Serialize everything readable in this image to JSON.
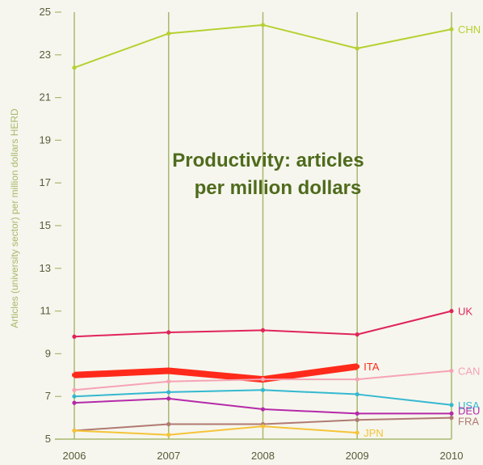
{
  "chart_data": {
    "type": "line",
    "title_lines": [
      "Productivity: articles",
      "per million dollars"
    ],
    "ylabel": "Articles (university sector) per million dollars HERD",
    "xlabel": "",
    "x": [
      2006,
      2007,
      2008,
      2009,
      2010
    ],
    "ylim": [
      5,
      25
    ],
    "yticks": [
      5,
      7,
      9,
      11,
      13,
      15,
      17,
      19,
      21,
      23,
      25
    ],
    "grid": "vertical",
    "legend": "direct labels at line ends",
    "series": [
      {
        "name": "CHN",
        "color": "#b5d132",
        "width": 2,
        "values": [
          22.4,
          24.0,
          24.4,
          23.3,
          24.2
        ]
      },
      {
        "name": "UK",
        "color": "#e0245a",
        "width": 2,
        "values": [
          9.8,
          10.0,
          10.1,
          9.9,
          11.0
        ]
      },
      {
        "name": "ITA",
        "color": "#ff2a1a",
        "width": 8,
        "values": [
          8.0,
          8.2,
          7.8,
          8.4,
          null
        ]
      },
      {
        "name": "CAN",
        "color": "#f6a3b4",
        "width": 2,
        "values": [
          7.3,
          7.7,
          7.8,
          7.8,
          8.2
        ]
      },
      {
        "name": "USA",
        "color": "#35b8d0",
        "width": 2,
        "values": [
          7.0,
          7.2,
          7.3,
          7.1,
          6.6
        ]
      },
      {
        "name": "DEU",
        "color": "#b52aa8",
        "width": 2,
        "values": [
          6.7,
          6.9,
          6.4,
          6.2,
          6.2
        ]
      },
      {
        "name": "FRA",
        "color": "#b07a72",
        "width": 2,
        "values": [
          5.4,
          5.7,
          5.7,
          5.9,
          6.0
        ]
      },
      {
        "name": "JPN",
        "color": "#f6c338",
        "width": 2,
        "values": [
          5.4,
          5.2,
          5.6,
          5.3,
          null
        ]
      }
    ]
  }
}
